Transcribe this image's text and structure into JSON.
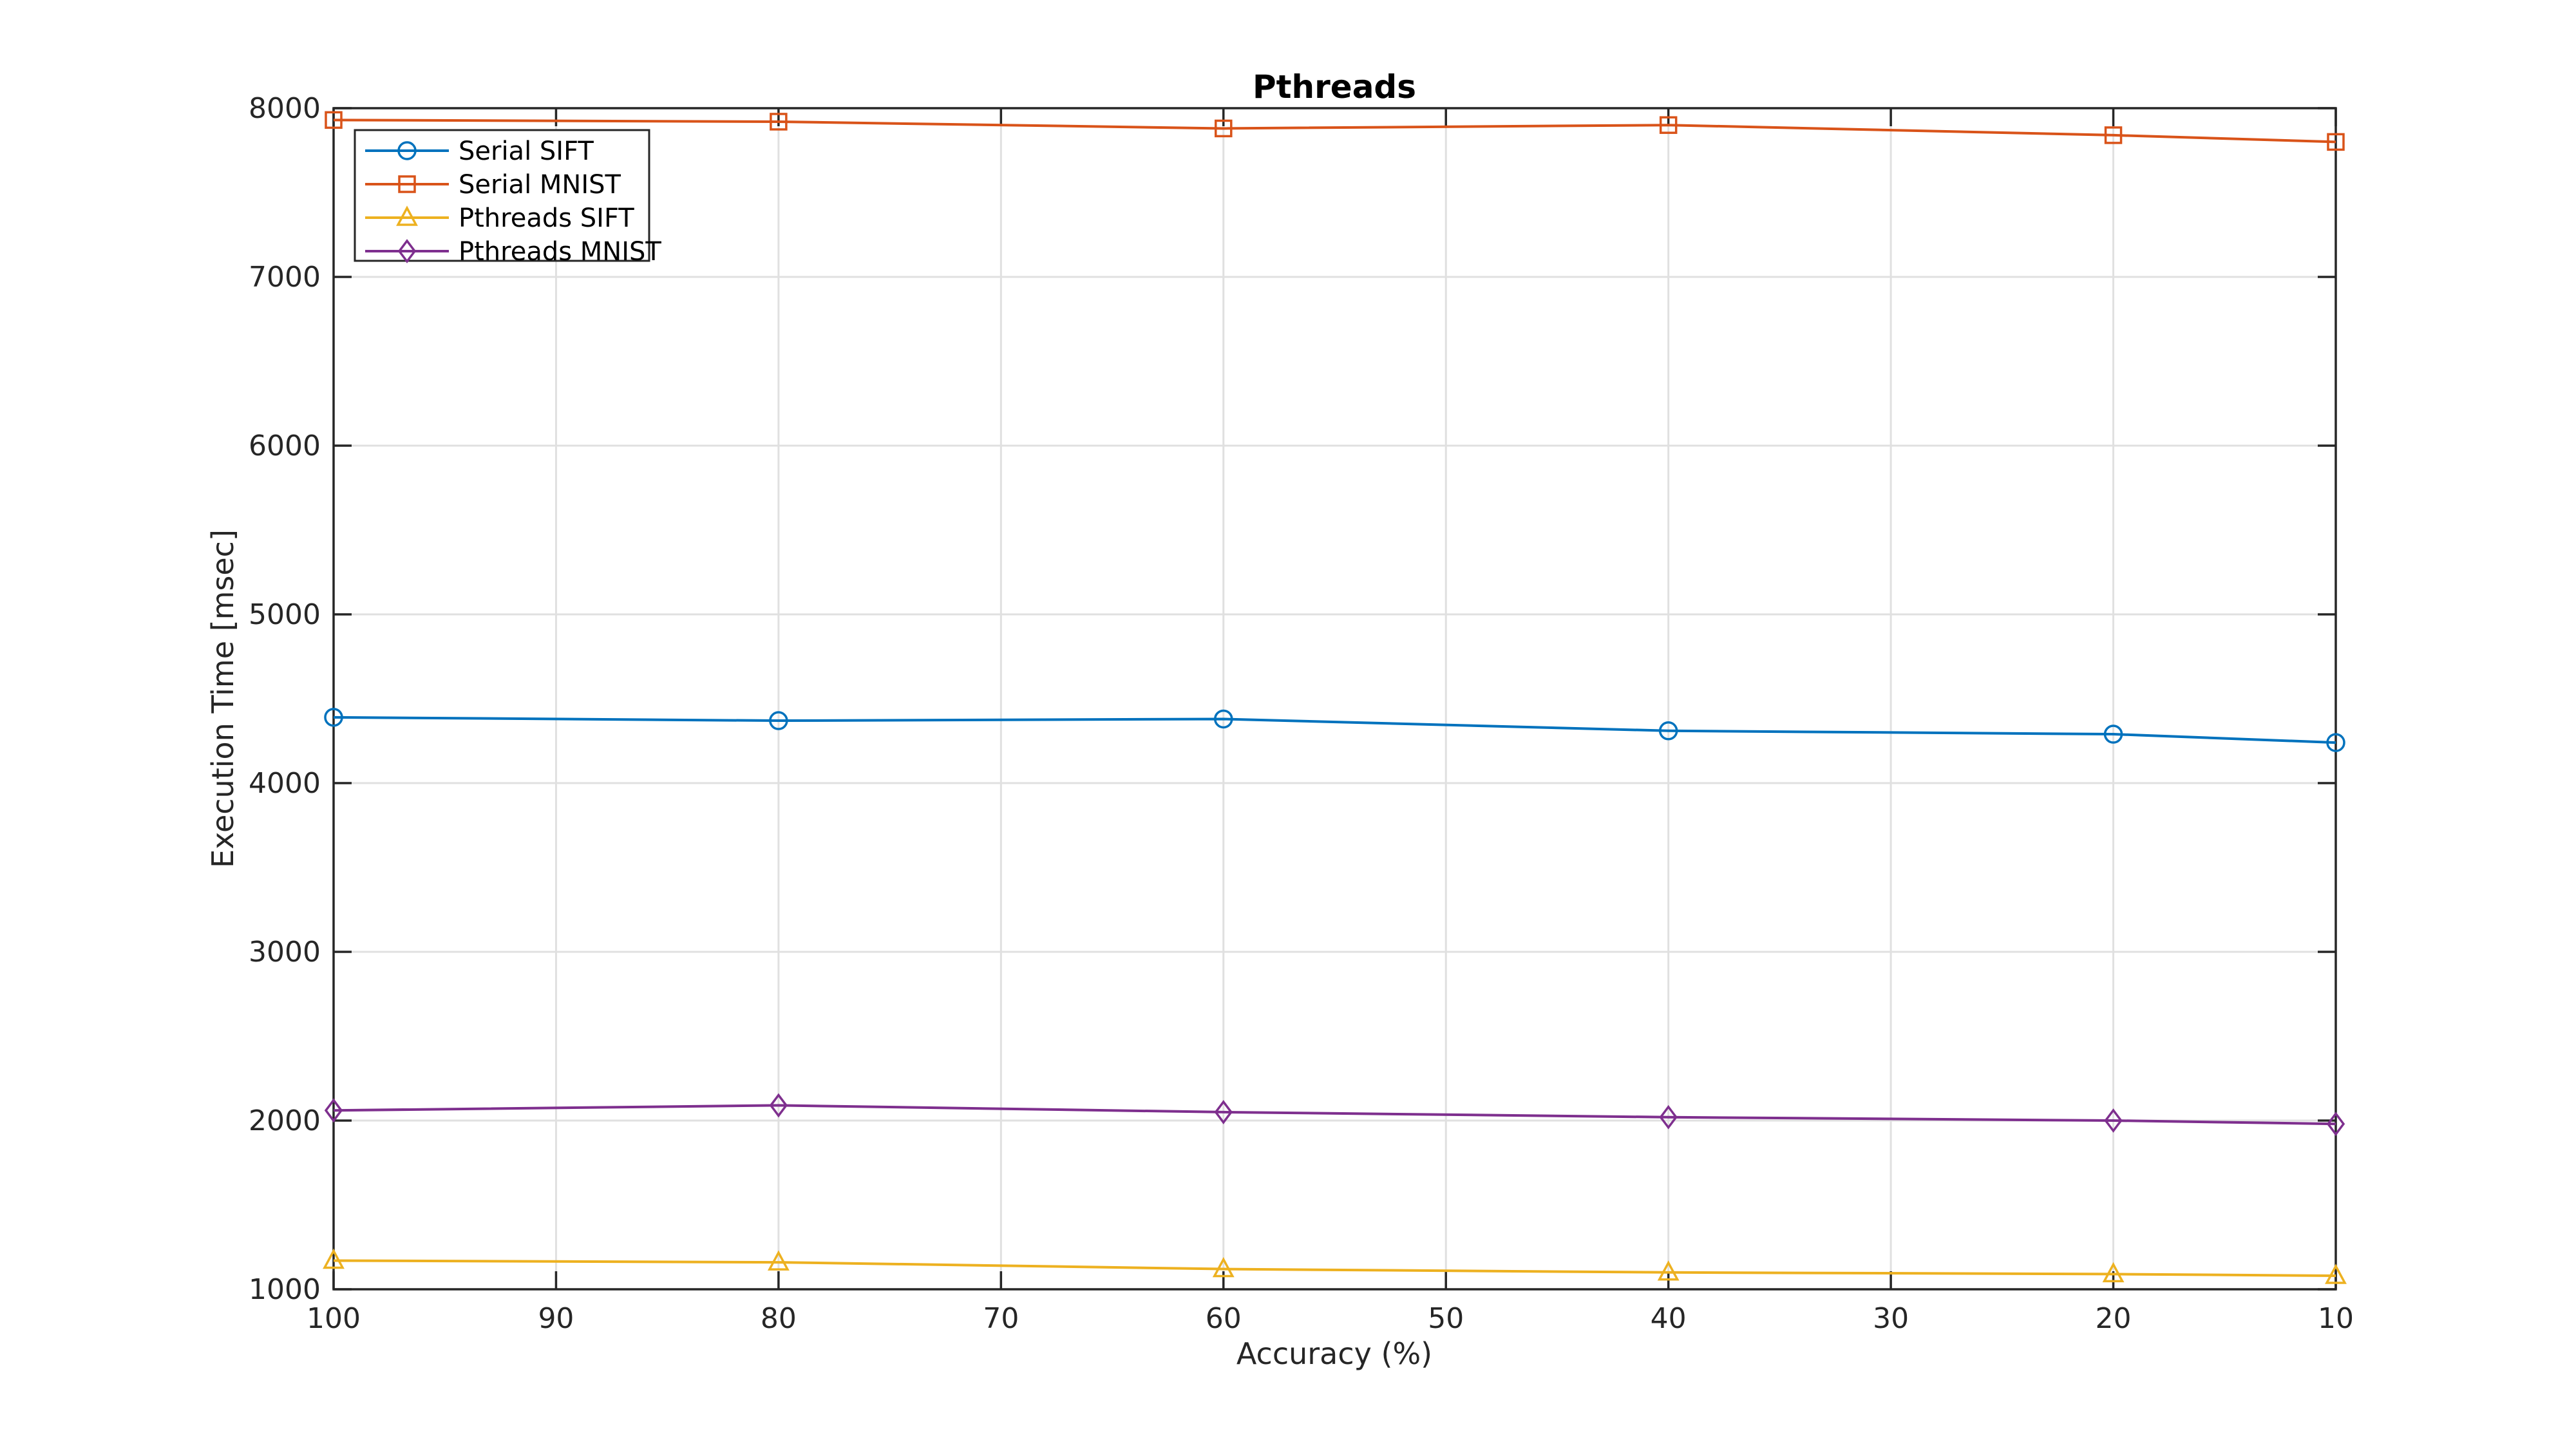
{
  "chart_data": {
    "type": "line",
    "title": "Pthreads",
    "xlabel": "Accuracy (%)",
    "ylabel": "Execution Time [msec]",
    "x": [
      100,
      80,
      60,
      40,
      20,
      10
    ],
    "x_ticks": [
      100,
      90,
      80,
      70,
      60,
      50,
      40,
      30,
      20,
      10
    ],
    "y_ticks": [
      1000,
      2000,
      3000,
      4000,
      5000,
      6000,
      7000,
      8000
    ],
    "xlim": [
      100,
      10
    ],
    "ylim": [
      1000,
      8000
    ],
    "x_axis_reversed": true,
    "grid": true,
    "legend_position": "top-left-inside",
    "axis_color": "#262626",
    "grid_color": "#e0e0e0",
    "background_color": "#ffffff",
    "series": [
      {
        "name": "Serial SIFT",
        "color": "#0072BD",
        "marker": "circle",
        "values": [
          4390,
          4370,
          4380,
          4310,
          4290,
          4240
        ]
      },
      {
        "name": "Serial MNIST",
        "color": "#D95319",
        "marker": "square",
        "values": [
          7930,
          7920,
          7880,
          7900,
          7840,
          7800
        ]
      },
      {
        "name": "Pthreads SIFT",
        "color": "#EDB120",
        "marker": "triangle-up",
        "values": [
          1170,
          1160,
          1120,
          1100,
          1090,
          1080
        ]
      },
      {
        "name": "Pthreads MNIST",
        "color": "#7E2F8E",
        "marker": "diamond",
        "values": [
          2060,
          2090,
          2050,
          2020,
          2000,
          1980
        ]
      }
    ]
  }
}
